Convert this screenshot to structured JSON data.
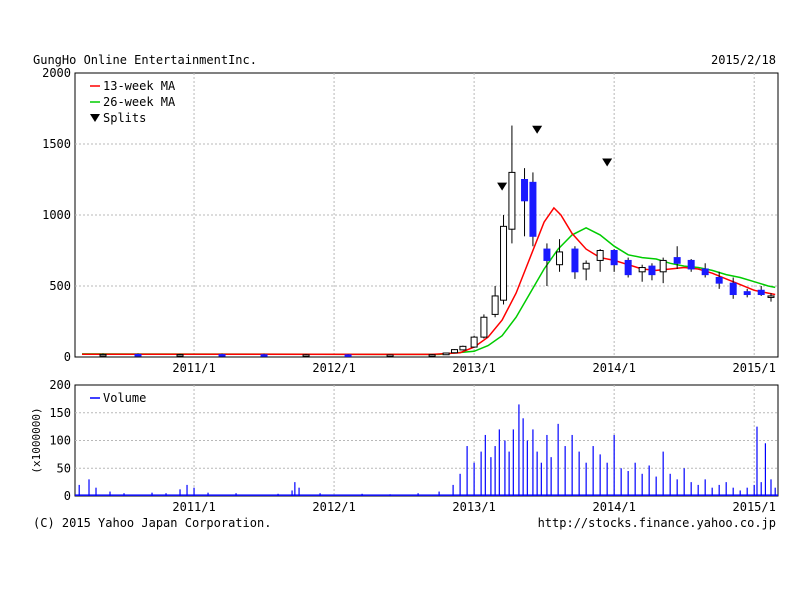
{
  "header": {
    "company": "GungHo Online EntertainmentInc.",
    "date": "2015/2/18"
  },
  "footer": {
    "copyright": "(C) 2015 Yahoo Japan Corporation.",
    "url": "http://stocks.finance.yahoo.co.jp"
  },
  "colors": {
    "up_candle": "#ffffff",
    "down_candle": "#1a1aff",
    "ma13": "#ff0000",
    "ma26": "#00cc00",
    "volume": "#0000ff",
    "grid": "#b8b8b8"
  },
  "chart_data": [
    {
      "type": "candlestick",
      "y_ticks": [
        "0",
        "500",
        "1000",
        "1500",
        "2000"
      ],
      "x_ticks": [
        "2011/1",
        "2012/1",
        "2013/1",
        "2014/1",
        "2015/1"
      ],
      "ylim": [
        0,
        2000
      ],
      "grid": true,
      "legend": {
        "position": "top-left",
        "entries": [
          "13-week MA",
          "26-week MA",
          "Splits"
        ]
      },
      "split_markers": [
        {
          "date": 2013.2,
          "y": 1200
        },
        {
          "date": 2013.45,
          "y": 1600
        },
        {
          "date": 2013.95,
          "y": 1370
        }
      ],
      "candles": [
        {
          "date": 2010.35,
          "open": 15,
          "high": 25,
          "low": 10,
          "close": 18
        },
        {
          "date": 2010.6,
          "open": 18,
          "high": 25,
          "low": 12,
          "close": 15
        },
        {
          "date": 2010.9,
          "open": 15,
          "high": 22,
          "low": 10,
          "close": 17
        },
        {
          "date": 2011.2,
          "open": 17,
          "high": 24,
          "low": 12,
          "close": 16
        },
        {
          "date": 2011.5,
          "open": 16,
          "high": 23,
          "low": 11,
          "close": 14
        },
        {
          "date": 2011.8,
          "open": 14,
          "high": 20,
          "low": 10,
          "close": 15
        },
        {
          "date": 2012.1,
          "open": 15,
          "high": 20,
          "low": 10,
          "close": 13
        },
        {
          "date": 2012.4,
          "open": 13,
          "high": 18,
          "low": 9,
          "close": 14
        },
        {
          "date": 2012.7,
          "open": 14,
          "high": 20,
          "low": 10,
          "close": 16
        },
        {
          "date": 2012.8,
          "open": 16,
          "high": 30,
          "low": 14,
          "close": 28
        },
        {
          "date": 2012.86,
          "open": 30,
          "high": 55,
          "low": 28,
          "close": 52
        },
        {
          "date": 2012.92,
          "open": 50,
          "high": 80,
          "low": 48,
          "close": 75
        },
        {
          "date": 2013.0,
          "open": 70,
          "high": 150,
          "low": 65,
          "close": 140
        },
        {
          "date": 2013.07,
          "open": 140,
          "high": 300,
          "low": 130,
          "close": 280
        },
        {
          "date": 2013.15,
          "open": 300,
          "high": 500,
          "low": 280,
          "close": 430
        },
        {
          "date": 2013.21,
          "open": 400,
          "high": 1000,
          "low": 370,
          "close": 920
        },
        {
          "date": 2013.27,
          "open": 900,
          "high": 1630,
          "low": 800,
          "close": 1300
        },
        {
          "date": 2013.36,
          "open": 1250,
          "high": 1330,
          "low": 850,
          "close": 1100
        },
        {
          "date": 2013.42,
          "open": 1230,
          "high": 1300,
          "low": 780,
          "close": 850
        },
        {
          "date": 2013.52,
          "open": 760,
          "high": 800,
          "low": 500,
          "close": 680
        },
        {
          "date": 2013.61,
          "open": 650,
          "high": 830,
          "low": 600,
          "close": 740
        },
        {
          "date": 2013.72,
          "open": 760,
          "high": 780,
          "low": 550,
          "close": 600
        },
        {
          "date": 2013.8,
          "open": 620,
          "high": 680,
          "low": 540,
          "close": 660
        },
        {
          "date": 2013.9,
          "open": 680,
          "high": 760,
          "low": 600,
          "close": 750
        },
        {
          "date": 2014.0,
          "open": 750,
          "high": 760,
          "low": 600,
          "close": 650
        },
        {
          "date": 2014.1,
          "open": 680,
          "high": 700,
          "low": 560,
          "close": 580
        },
        {
          "date": 2014.2,
          "open": 600,
          "high": 650,
          "low": 530,
          "close": 630
        },
        {
          "date": 2014.27,
          "open": 640,
          "high": 660,
          "low": 540,
          "close": 580
        },
        {
          "date": 2014.35,
          "open": 600,
          "high": 700,
          "low": 520,
          "close": 680
        },
        {
          "date": 2014.45,
          "open": 700,
          "high": 780,
          "low": 620,
          "close": 660
        },
        {
          "date": 2014.55,
          "open": 680,
          "high": 690,
          "low": 600,
          "close": 620
        },
        {
          "date": 2014.65,
          "open": 620,
          "high": 660,
          "low": 560,
          "close": 580
        },
        {
          "date": 2014.75,
          "open": 560,
          "high": 600,
          "low": 480,
          "close": 520
        },
        {
          "date": 2014.85,
          "open": 520,
          "high": 560,
          "low": 410,
          "close": 440
        },
        {
          "date": 2014.95,
          "open": 460,
          "high": 480,
          "low": 420,
          "close": 440
        },
        {
          "date": 2015.05,
          "open": 470,
          "high": 500,
          "low": 430,
          "close": 440
        },
        {
          "date": 2015.12,
          "open": 420,
          "high": 450,
          "low": 390,
          "close": 430
        }
      ],
      "ma13": [
        [
          2010.2,
          20
        ],
        [
          2012.7,
          18
        ],
        [
          2012.9,
          30
        ],
        [
          2013.0,
          70
        ],
        [
          2013.1,
          140
        ],
        [
          2013.2,
          260
        ],
        [
          2013.3,
          450
        ],
        [
          2013.4,
          700
        ],
        [
          2013.5,
          950
        ],
        [
          2013.57,
          1050
        ],
        [
          2013.62,
          1000
        ],
        [
          2013.7,
          870
        ],
        [
          2013.8,
          760
        ],
        [
          2013.9,
          700
        ],
        [
          2014.0,
          680
        ],
        [
          2014.1,
          650
        ],
        [
          2014.2,
          620
        ],
        [
          2014.3,
          610
        ],
        [
          2014.4,
          620
        ],
        [
          2014.5,
          630
        ],
        [
          2014.6,
          620
        ],
        [
          2014.7,
          590
        ],
        [
          2014.8,
          550
        ],
        [
          2014.9,
          510
        ],
        [
          2015.0,
          470
        ],
        [
          2015.1,
          450
        ],
        [
          2015.15,
          440
        ]
      ],
      "ma26": [
        [
          2010.2,
          22
        ],
        [
          2012.75,
          18
        ],
        [
          2013.0,
          40
        ],
        [
          2013.1,
          80
        ],
        [
          2013.2,
          150
        ],
        [
          2013.3,
          280
        ],
        [
          2013.4,
          450
        ],
        [
          2013.5,
          620
        ],
        [
          2013.6,
          760
        ],
        [
          2013.7,
          860
        ],
        [
          2013.8,
          910
        ],
        [
          2013.9,
          860
        ],
        [
          2014.0,
          780
        ],
        [
          2014.1,
          720
        ],
        [
          2014.2,
          700
        ],
        [
          2014.3,
          690
        ],
        [
          2014.4,
          660
        ],
        [
          2014.5,
          640
        ],
        [
          2014.6,
          630
        ],
        [
          2014.7,
          610
        ],
        [
          2014.8,
          580
        ],
        [
          2014.9,
          560
        ],
        [
          2015.0,
          530
        ],
        [
          2015.1,
          500
        ],
        [
          2015.15,
          490
        ]
      ]
    },
    {
      "type": "bar",
      "series_name": "Volume",
      "ylabel": "(x1000000)",
      "y_ticks": [
        "0",
        "50",
        "100",
        "150",
        "200"
      ],
      "x_ticks": [
        "2011/1",
        "2012/1",
        "2013/1",
        "2014/1",
        "2015/1"
      ],
      "ylim": [
        0,
        200
      ],
      "grid": true,
      "legend": {
        "position": "top-left",
        "entries": [
          "Volume"
        ]
      },
      "bars": [
        [
          2010.18,
          20
        ],
        [
          2010.25,
          30
        ],
        [
          2010.3,
          15
        ],
        [
          2010.4,
          8
        ],
        [
          2010.5,
          5
        ],
        [
          2010.7,
          6
        ],
        [
          2010.8,
          5
        ],
        [
          2010.9,
          12
        ],
        [
          2010.95,
          20
        ],
        [
          2011.0,
          15
        ],
        [
          2011.1,
          6
        ],
        [
          2011.3,
          5
        ],
        [
          2011.6,
          4
        ],
        [
          2011.7,
          10
        ],
        [
          2011.72,
          25
        ],
        [
          2011.75,
          15
        ],
        [
          2011.9,
          5
        ],
        [
          2012.2,
          4
        ],
        [
          2012.4,
          3
        ],
        [
          2012.6,
          5
        ],
        [
          2012.75,
          8
        ],
        [
          2012.85,
          20
        ],
        [
          2012.9,
          40
        ],
        [
          2012.95,
          90
        ],
        [
          2013.0,
          60
        ],
        [
          2013.05,
          80
        ],
        [
          2013.08,
          110
        ],
        [
          2013.12,
          70
        ],
        [
          2013.15,
          90
        ],
        [
          2013.18,
          120
        ],
        [
          2013.22,
          100
        ],
        [
          2013.25,
          80
        ],
        [
          2013.28,
          120
        ],
        [
          2013.32,
          165
        ],
        [
          2013.35,
          140
        ],
        [
          2013.38,
          100
        ],
        [
          2013.42,
          120
        ],
        [
          2013.45,
          80
        ],
        [
          2013.48,
          60
        ],
        [
          2013.52,
          110
        ],
        [
          2013.55,
          70
        ],
        [
          2013.6,
          130
        ],
        [
          2013.65,
          90
        ],
        [
          2013.7,
          110
        ],
        [
          2013.75,
          80
        ],
        [
          2013.8,
          60
        ],
        [
          2013.85,
          90
        ],
        [
          2013.9,
          75
        ],
        [
          2013.95,
          60
        ],
        [
          2014.0,
          110
        ],
        [
          2014.05,
          50
        ],
        [
          2014.1,
          45
        ],
        [
          2014.15,
          60
        ],
        [
          2014.2,
          40
        ],
        [
          2014.25,
          55
        ],
        [
          2014.3,
          35
        ],
        [
          2014.35,
          80
        ],
        [
          2014.4,
          40
        ],
        [
          2014.45,
          30
        ],
        [
          2014.5,
          50
        ],
        [
          2014.55,
          25
        ],
        [
          2014.6,
          20
        ],
        [
          2014.65,
          30
        ],
        [
          2014.7,
          15
        ],
        [
          2014.75,
          20
        ],
        [
          2014.8,
          25
        ],
        [
          2014.85,
          15
        ],
        [
          2014.9,
          10
        ],
        [
          2014.95,
          15
        ],
        [
          2015.0,
          20
        ],
        [
          2015.02,
          125
        ],
        [
          2015.05,
          25
        ],
        [
          2015.08,
          95
        ],
        [
          2015.12,
          30
        ],
        [
          2015.15,
          15
        ]
      ]
    }
  ]
}
